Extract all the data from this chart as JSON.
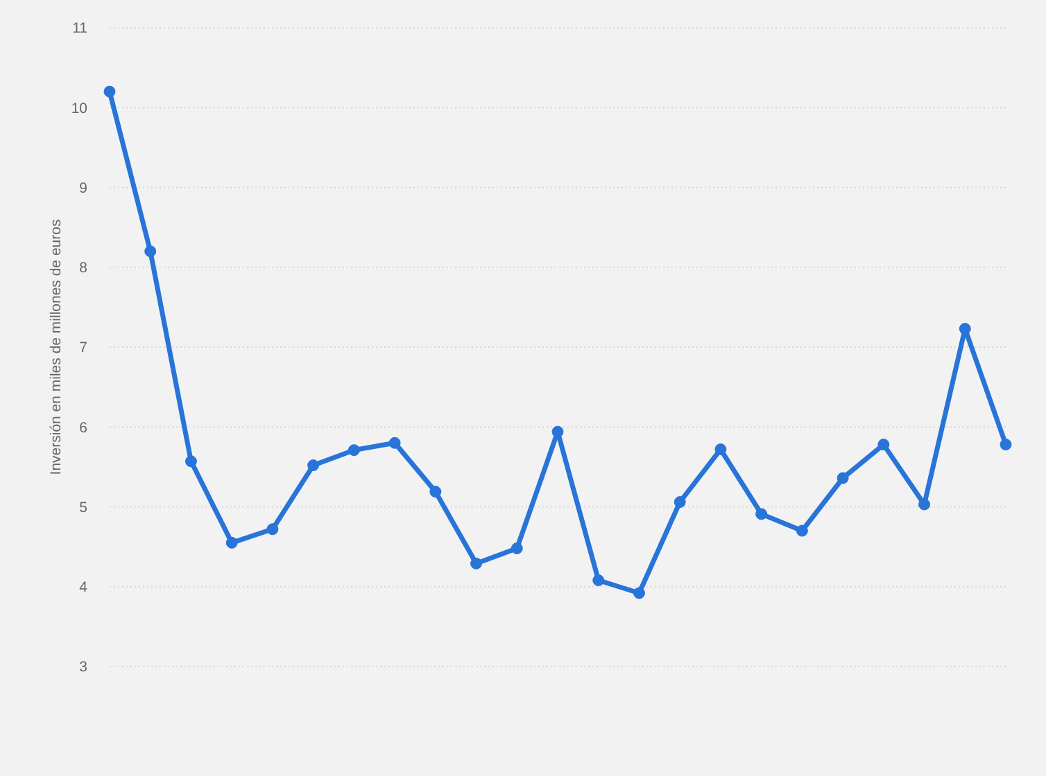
{
  "chart_data": {
    "type": "line",
    "ylabel": "Inversión en miles de millones de euros",
    "categories": [
      null,
      null,
      null,
      null,
      null,
      null,
      null,
      null,
      null,
      null,
      null,
      null,
      null,
      null,
      null,
      null,
      null,
      null,
      null,
      null,
      null,
      null,
      null
    ],
    "series": [
      {
        "color": "#2874d8",
        "values": [
          10.2,
          8.2,
          5.57,
          4.55,
          4.72,
          5.52,
          5.71,
          5.8,
          5.19,
          4.29,
          4.48,
          5.94,
          4.08,
          3.92,
          5.06,
          5.72,
          4.91,
          4.7,
          5.36,
          5.78,
          5.03,
          7.23,
          5.78
        ]
      }
    ],
    "ylim": [
      3,
      11
    ],
    "yticks": [
      3,
      4,
      5,
      6,
      7,
      8,
      9,
      10,
      11
    ],
    "grid": "y",
    "tick_labels": "y",
    "marker": "circle",
    "line_style": "solid"
  }
}
